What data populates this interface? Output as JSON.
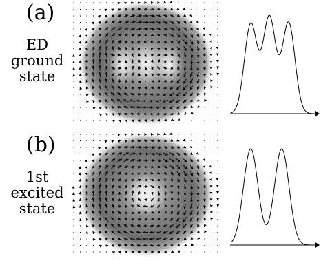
{
  "panels": [
    {
      "label": "(a)",
      "description": [
        "ED",
        "ground",
        "state"
      ],
      "field": "ground",
      "profile_peaks": 3
    },
    {
      "label": "(b)",
      "description": [
        "1st",
        "excited",
        "state"
      ],
      "field": "excited",
      "profile_peaks": 2
    }
  ],
  "colors": {
    "ink": "#000000",
    "density_dark": "#6e6e6e",
    "background": "#ffffff"
  }
}
